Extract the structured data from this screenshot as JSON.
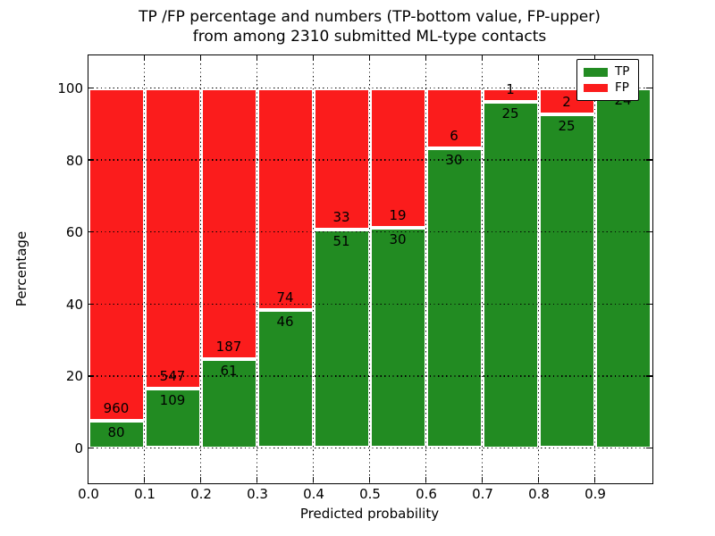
{
  "figure": {
    "title_line1": "TP /FP percentage and numbers (TP-bottom value, FP-upper)",
    "title_line2": "from among 2310 submitted ML-type contacts"
  },
  "axes": {
    "xlabel": "Predicted probability",
    "ylabel": "Percentage",
    "x_tick_labels": [
      "0.0",
      "0.1",
      "0.2",
      "0.3",
      "0.4",
      "0.5",
      "0.6",
      "0.7",
      "0.8",
      "0.9"
    ],
    "y_tick_labels": [
      "0",
      "20",
      "40",
      "60",
      "80",
      "100"
    ],
    "y_tick_values": [
      0,
      20,
      40,
      60,
      80,
      100
    ],
    "xlim": [
      0.0,
      1.0
    ]
  },
  "legend": {
    "position": "upper right",
    "entries": [
      {
        "label": "TP",
        "color": "#228b22"
      },
      {
        "label": "FP",
        "color": "#fb1c1c"
      }
    ]
  },
  "chart_data": {
    "type": "bar",
    "variant": "stacked-percentage-histogram",
    "title": "TP /FP percentage and numbers (TP-bottom value, FP-upper)\nfrom among 2310 submitted ML-type contacts",
    "xlabel": "Predicted probability",
    "ylabel": "Percentage",
    "total_contacts": 2310,
    "bin_start": [
      0.0,
      0.1,
      0.2,
      0.3,
      0.4,
      0.5,
      0.6,
      0.7,
      0.8,
      0.9
    ],
    "bin_width": 0.1,
    "series": [
      {
        "name": "TP",
        "color": "#228b22",
        "counts": [
          80,
          109,
          61,
          46,
          51,
          30,
          30,
          25,
          25,
          24
        ]
      },
      {
        "name": "FP",
        "color": "#fb1c1c",
        "counts": [
          960,
          547,
          187,
          74,
          33,
          19,
          6,
          1,
          2,
          0
        ]
      }
    ],
    "tp_percent": [
      7.7,
      16.6,
      24.6,
      38.3,
      60.7,
      61.2,
      83.3,
      96.2,
      92.6,
      100.0
    ],
    "tp_count_labels": [
      "80",
      "109",
      "61",
      "46",
      "51",
      "30",
      "30",
      "25",
      "25",
      "24"
    ],
    "fp_count_labels": [
      "960",
      "547",
      "187",
      "74",
      "33",
      "19",
      "6",
      "1",
      "2",
      ""
    ],
    "ylim_percent": [
      0,
      100
    ],
    "grid": "dotted",
    "legend_position": "upper right"
  }
}
